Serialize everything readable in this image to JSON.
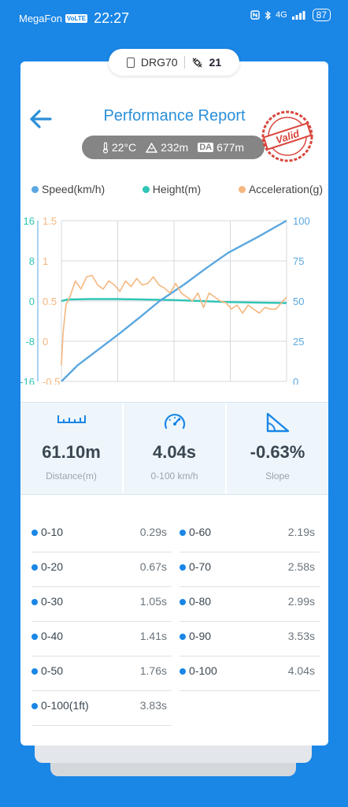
{
  "status_bar": {
    "carrier": "MegaFon",
    "volte": "VoLTE",
    "time": "22:27",
    "network": "4G",
    "battery": "87"
  },
  "device": {
    "name": "DRG70",
    "satellites": "21"
  },
  "report": {
    "title": "Performance Report",
    "stamp": "Valid"
  },
  "conditions": {
    "temperature": "22°C",
    "altitude": "232m",
    "da_label": "DA",
    "density_altitude": "677m"
  },
  "legend": [
    {
      "name": "Speed(km/h)",
      "color": "#5aa7e0"
    },
    {
      "name": "Height(m)",
      "color": "#2ec4b6"
    },
    {
      "name": "Acceleration(g)",
      "color": "#f4b780"
    }
  ],
  "chart_data": {
    "type": "line",
    "title": "",
    "y_left_height_ticks": [
      "16",
      "8",
      "0",
      "-8",
      "-16"
    ],
    "y_left_accel_ticks": [
      "1.5",
      "1",
      "0.5",
      "0",
      "-0.5"
    ],
    "y_right_speed_ticks": [
      "100",
      "75",
      "50",
      "25",
      "0"
    ],
    "grid": true,
    "series": [
      {
        "name": "Speed(km/h)",
        "axis": "right",
        "ylim": [
          0,
          100
        ],
        "color": "#5aa7e0",
        "t": [
          0,
          0.29,
          0.67,
          1.05,
          1.41,
          1.76,
          2.19,
          2.58,
          2.99,
          3.53,
          4.04
        ],
        "values": [
          0,
          10,
          20,
          30,
          40,
          50,
          60,
          70,
          80,
          90,
          100
        ]
      },
      {
        "name": "Height(m)",
        "axis": "left",
        "ylim": [
          -16,
          16
        ],
        "color": "#2ec4b6",
        "t": [
          0,
          0.1,
          0.5,
          1.0,
          1.5,
          2.0,
          2.5,
          3.0,
          3.5,
          4.04
        ],
        "values": [
          0,
          0.3,
          0.4,
          0.4,
          0.3,
          0.2,
          0.0,
          -0.2,
          -0.3,
          -0.4
        ]
      },
      {
        "name": "Acceleration(g)",
        "axis": "left",
        "ylim": [
          -0.5,
          1.5
        ],
        "color": "#f4b780",
        "t": [
          0,
          0.03,
          0.08,
          0.15,
          0.25,
          0.35,
          0.45,
          0.55,
          0.65,
          0.75,
          0.85,
          0.95,
          1.05,
          1.15,
          1.25,
          1.35,
          1.45,
          1.55,
          1.65,
          1.75,
          1.85,
          1.95,
          2.05,
          2.15,
          2.25,
          2.35,
          2.45,
          2.55,
          2.65,
          2.75,
          2.85,
          2.95,
          3.05,
          3.15,
          3.25,
          3.35,
          3.45,
          3.55,
          3.65,
          3.75,
          3.85,
          3.95,
          4.04
        ],
        "values": [
          -0.3,
          0.1,
          0.45,
          0.55,
          0.75,
          0.65,
          0.8,
          0.82,
          0.7,
          0.65,
          0.75,
          0.7,
          0.62,
          0.75,
          0.68,
          0.78,
          0.7,
          0.72,
          0.8,
          0.7,
          0.66,
          0.6,
          0.72,
          0.6,
          0.55,
          0.5,
          0.6,
          0.42,
          0.6,
          0.55,
          0.5,
          0.48,
          0.4,
          0.45,
          0.35,
          0.45,
          0.4,
          0.35,
          0.42,
          0.4,
          0.4,
          0.48,
          0.55
        ]
      }
    ],
    "xlim": [
      0,
      4.04
    ]
  },
  "metrics": [
    {
      "value": "61.10m",
      "label": "Distance(m)",
      "icon": "ruler-icon"
    },
    {
      "value": "4.04s",
      "label": "0-100 km/h",
      "icon": "speedometer-icon"
    },
    {
      "value": "-0.63%",
      "label": "Slope",
      "icon": "slope-icon"
    }
  ],
  "results_left": [
    {
      "label": "0-10",
      "value": "0.29s"
    },
    {
      "label": "0-20",
      "value": "0.67s"
    },
    {
      "label": "0-30",
      "value": "1.05s"
    },
    {
      "label": "0-40",
      "value": "1.41s"
    },
    {
      "label": "0-50",
      "value": "1.76s"
    },
    {
      "label": "0-100(1ft)",
      "value": "3.83s"
    }
  ],
  "results_right": [
    {
      "label": "0-60",
      "value": "2.19s"
    },
    {
      "label": "0-70",
      "value": "2.58s"
    },
    {
      "label": "0-80",
      "value": "2.99s"
    },
    {
      "label": "0-90",
      "value": "3.53s"
    },
    {
      "label": "0-100",
      "value": "4.04s"
    }
  ]
}
